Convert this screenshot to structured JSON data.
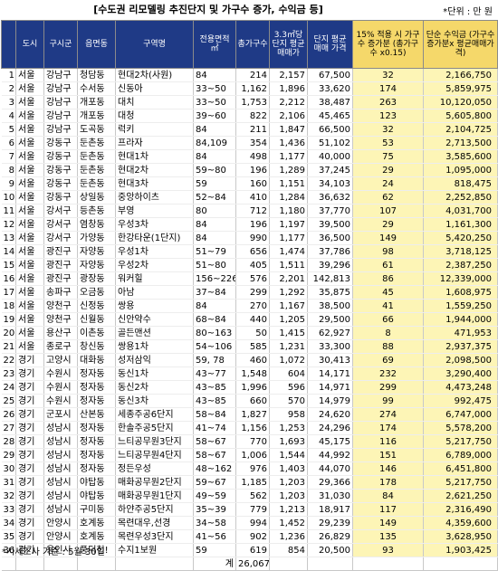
{
  "title": "[수도권 리모델링 추진단지 및 가구수 증가, 수익금 등]",
  "unit": "*단위 : 만 원",
  "headers": [
    "도시",
    "구시군",
    "읍면동",
    "구역명",
    "전용면적 ㎡",
    "총가구수",
    "3.3㎡당 단지 평균 매매가",
    "단지 평균 매매 가격",
    "15% 적용 시 가구수 증가분 (총가구수 x0.15)",
    "단순 수익금 (가구수증가분x 평균매매가격)"
  ],
  "rows": [
    [
      "1",
      "서울",
      "강남구",
      "청담동",
      "현대2차(사원)",
      "84",
      "214",
      "2,157",
      "67,500",
      "32",
      "2,166,750"
    ],
    [
      "2",
      "서울",
      "강남구",
      "수서동",
      "신동아",
      "33~50",
      "1,162",
      "1,896",
      "33,620",
      "174",
      "5,859,975"
    ],
    [
      "3",
      "서울",
      "강남구",
      "개포동",
      "대치",
      "33~50",
      "1,753",
      "2,212",
      "38,487",
      "263",
      "10,120,050"
    ],
    [
      "4",
      "서울",
      "강남구",
      "개포동",
      "대청",
      "39~60",
      "822",
      "2,106",
      "45,465",
      "123",
      "5,605,800"
    ],
    [
      "5",
      "서울",
      "강남구",
      "도곡동",
      "럭키",
      "84",
      "211",
      "1,847",
      "66,500",
      "32",
      "2,104,725"
    ],
    [
      "6",
      "서울",
      "강동구",
      "둔촌동",
      "프라자",
      "84,109",
      "354",
      "1,436",
      "51,102",
      "53",
      "2,713,500"
    ],
    [
      "7",
      "서울",
      "강동구",
      "둔촌동",
      "현대1차",
      "84",
      "498",
      "1,177",
      "40,000",
      "75",
      "3,585,600"
    ],
    [
      "8",
      "서울",
      "강동구",
      "둔촌동",
      "현대2차",
      "59~80",
      "196",
      "1,289",
      "37,245",
      "29",
      "1,095,000"
    ],
    [
      "9",
      "서울",
      "강동구",
      "둔촌동",
      "현대3차",
      "59",
      "160",
      "1,151",
      "34,103",
      "24",
      "818,475"
    ],
    [
      "10",
      "서울",
      "강동구",
      "상일동",
      "중앙하이츠",
      "52~84",
      "410",
      "1,284",
      "36,632",
      "62",
      "2,252,850"
    ],
    [
      "11",
      "서울",
      "강서구",
      "등촌동",
      "부영",
      "80",
      "712",
      "1,180",
      "37,770",
      "107",
      "4,031,700"
    ],
    [
      "12",
      "서울",
      "강서구",
      "염창동",
      "우성3차",
      "84",
      "196",
      "1,197",
      "39,500",
      "29",
      "1,161,300"
    ],
    [
      "13",
      "서울",
      "강서구",
      "가양동",
      "한강타운(1단지)",
      "84",
      "990",
      "1,177",
      "36,500",
      "149",
      "5,420,250"
    ],
    [
      "14",
      "서울",
      "광진구",
      "자양동",
      "우성1차",
      "51~79",
      "656",
      "1,474",
      "37,786",
      "98",
      "3,718,125"
    ],
    [
      "15",
      "서울",
      "광진구",
      "자양동",
      "우성2차",
      "51~80",
      "405",
      "1,511",
      "39,296",
      "61",
      "2,387,250"
    ],
    [
      "16",
      "서울",
      "광진구",
      "광장동",
      "워커힐",
      "156~226",
      "576",
      "2,201",
      "142,813",
      "86",
      "12,339,000"
    ],
    [
      "17",
      "서울",
      "송파구",
      "오금동",
      "아남",
      "37~84",
      "299",
      "1,292",
      "35,875",
      "45",
      "1,608,975"
    ],
    [
      "18",
      "서울",
      "양천구",
      "신정동",
      "쌍용",
      "84",
      "270",
      "1,167",
      "38,500",
      "41",
      "1,559,250"
    ],
    [
      "19",
      "서울",
      "양천구",
      "신월동",
      "신안약수",
      "68~84",
      "440",
      "1,205",
      "29,500",
      "66",
      "1,944,000"
    ],
    [
      "20",
      "서울",
      "용산구",
      "이촌동",
      "골든맨션",
      "80~163",
      "50",
      "1,415",
      "62,927",
      "8",
      "471,953"
    ],
    [
      "21",
      "서울",
      "종로구",
      "창신동",
      "쌍용1차",
      "54~106",
      "585",
      "1,231",
      "33,300",
      "88",
      "2,937,375"
    ],
    [
      "22",
      "경기",
      "고양시",
      "대화동",
      "성저삼익",
      "59, 78",
      "460",
      "1,072",
      "30,413",
      "69",
      "2,098,500"
    ],
    [
      "23",
      "경기",
      "수원시",
      "정자동",
      "동신1차",
      "43~77",
      "1,548",
      "604",
      "14,171",
      "232",
      "3,290,400"
    ],
    [
      "24",
      "경기",
      "수원시",
      "정자동",
      "동신2차",
      "43~85",
      "1,996",
      "596",
      "14,971",
      "299",
      "4,473,248"
    ],
    [
      "25",
      "경기",
      "수원시",
      "정자동",
      "동신3차",
      "43~85",
      "660",
      "570",
      "14,979",
      "99",
      "992,475"
    ],
    [
      "26",
      "경기",
      "군포시",
      "산본동",
      "세종주공6단지",
      "58~84",
      "1,827",
      "958",
      "24,620",
      "274",
      "6,747,000"
    ],
    [
      "27",
      "경기",
      "성남시",
      "정자동",
      "한솔주공5단지",
      "41~74",
      "1,156",
      "1,253",
      "24,296",
      "174",
      "5,578,200"
    ],
    [
      "28",
      "경기",
      "성남시",
      "정자동",
      "느티공무원3단지",
      "58~67",
      "770",
      "1,693",
      "45,175",
      "116",
      "5,217,750"
    ],
    [
      "29",
      "경기",
      "성남시",
      "정자동",
      "느티공무원4단지",
      "58~67",
      "1,006",
      "1,544",
      "44,992",
      "151",
      "6,789,000"
    ],
    [
      "30",
      "경기",
      "성남시",
      "정자동",
      "정든우성",
      "48~162",
      "976",
      "1,403",
      "44,070",
      "146",
      "6,451,800"
    ],
    [
      "31",
      "경기",
      "성남시",
      "야탑동",
      "매화공무원2단지",
      "59~67",
      "1,185",
      "1,203",
      "29,366",
      "178",
      "5,217,750"
    ],
    [
      "32",
      "경기",
      "성남시",
      "야탑동",
      "매화공무원1단지",
      "49~59",
      "562",
      "1,203",
      "31,030",
      "84",
      "2,621,250"
    ],
    [
      "33",
      "경기",
      "성남시",
      "구미동",
      "하얀주공5단지",
      "35~39",
      "779",
      "1,213",
      "18,917",
      "117",
      "2,316,490"
    ],
    [
      "34",
      "경기",
      "안양시",
      "호계동",
      "목련대우,선경",
      "34~58",
      "994",
      "1,452",
      "29,239",
      "149",
      "4,359,600"
    ],
    [
      "35",
      "경기",
      "안양시",
      "호계동",
      "목련우성3단지",
      "41~56",
      "902",
      "1,236",
      "26,829",
      "135",
      "3,628,950"
    ],
    [
      "36",
      "경기",
      "용인시",
      "풍덕천!",
      "수지1보원",
      "59",
      "619",
      "854",
      "20,500",
      "93",
      "1,903,425"
    ]
  ],
  "total": {
    "label": "계",
    "value": "26,067"
  },
  "footnote": "*시세조사 기준 : 5월 30일",
  "colors": {
    "header_bg": "#1f3a86",
    "header_text": "#ffffff",
    "highlight_header": "#f5d86a",
    "highlight_cell": "#fdf5b6"
  }
}
